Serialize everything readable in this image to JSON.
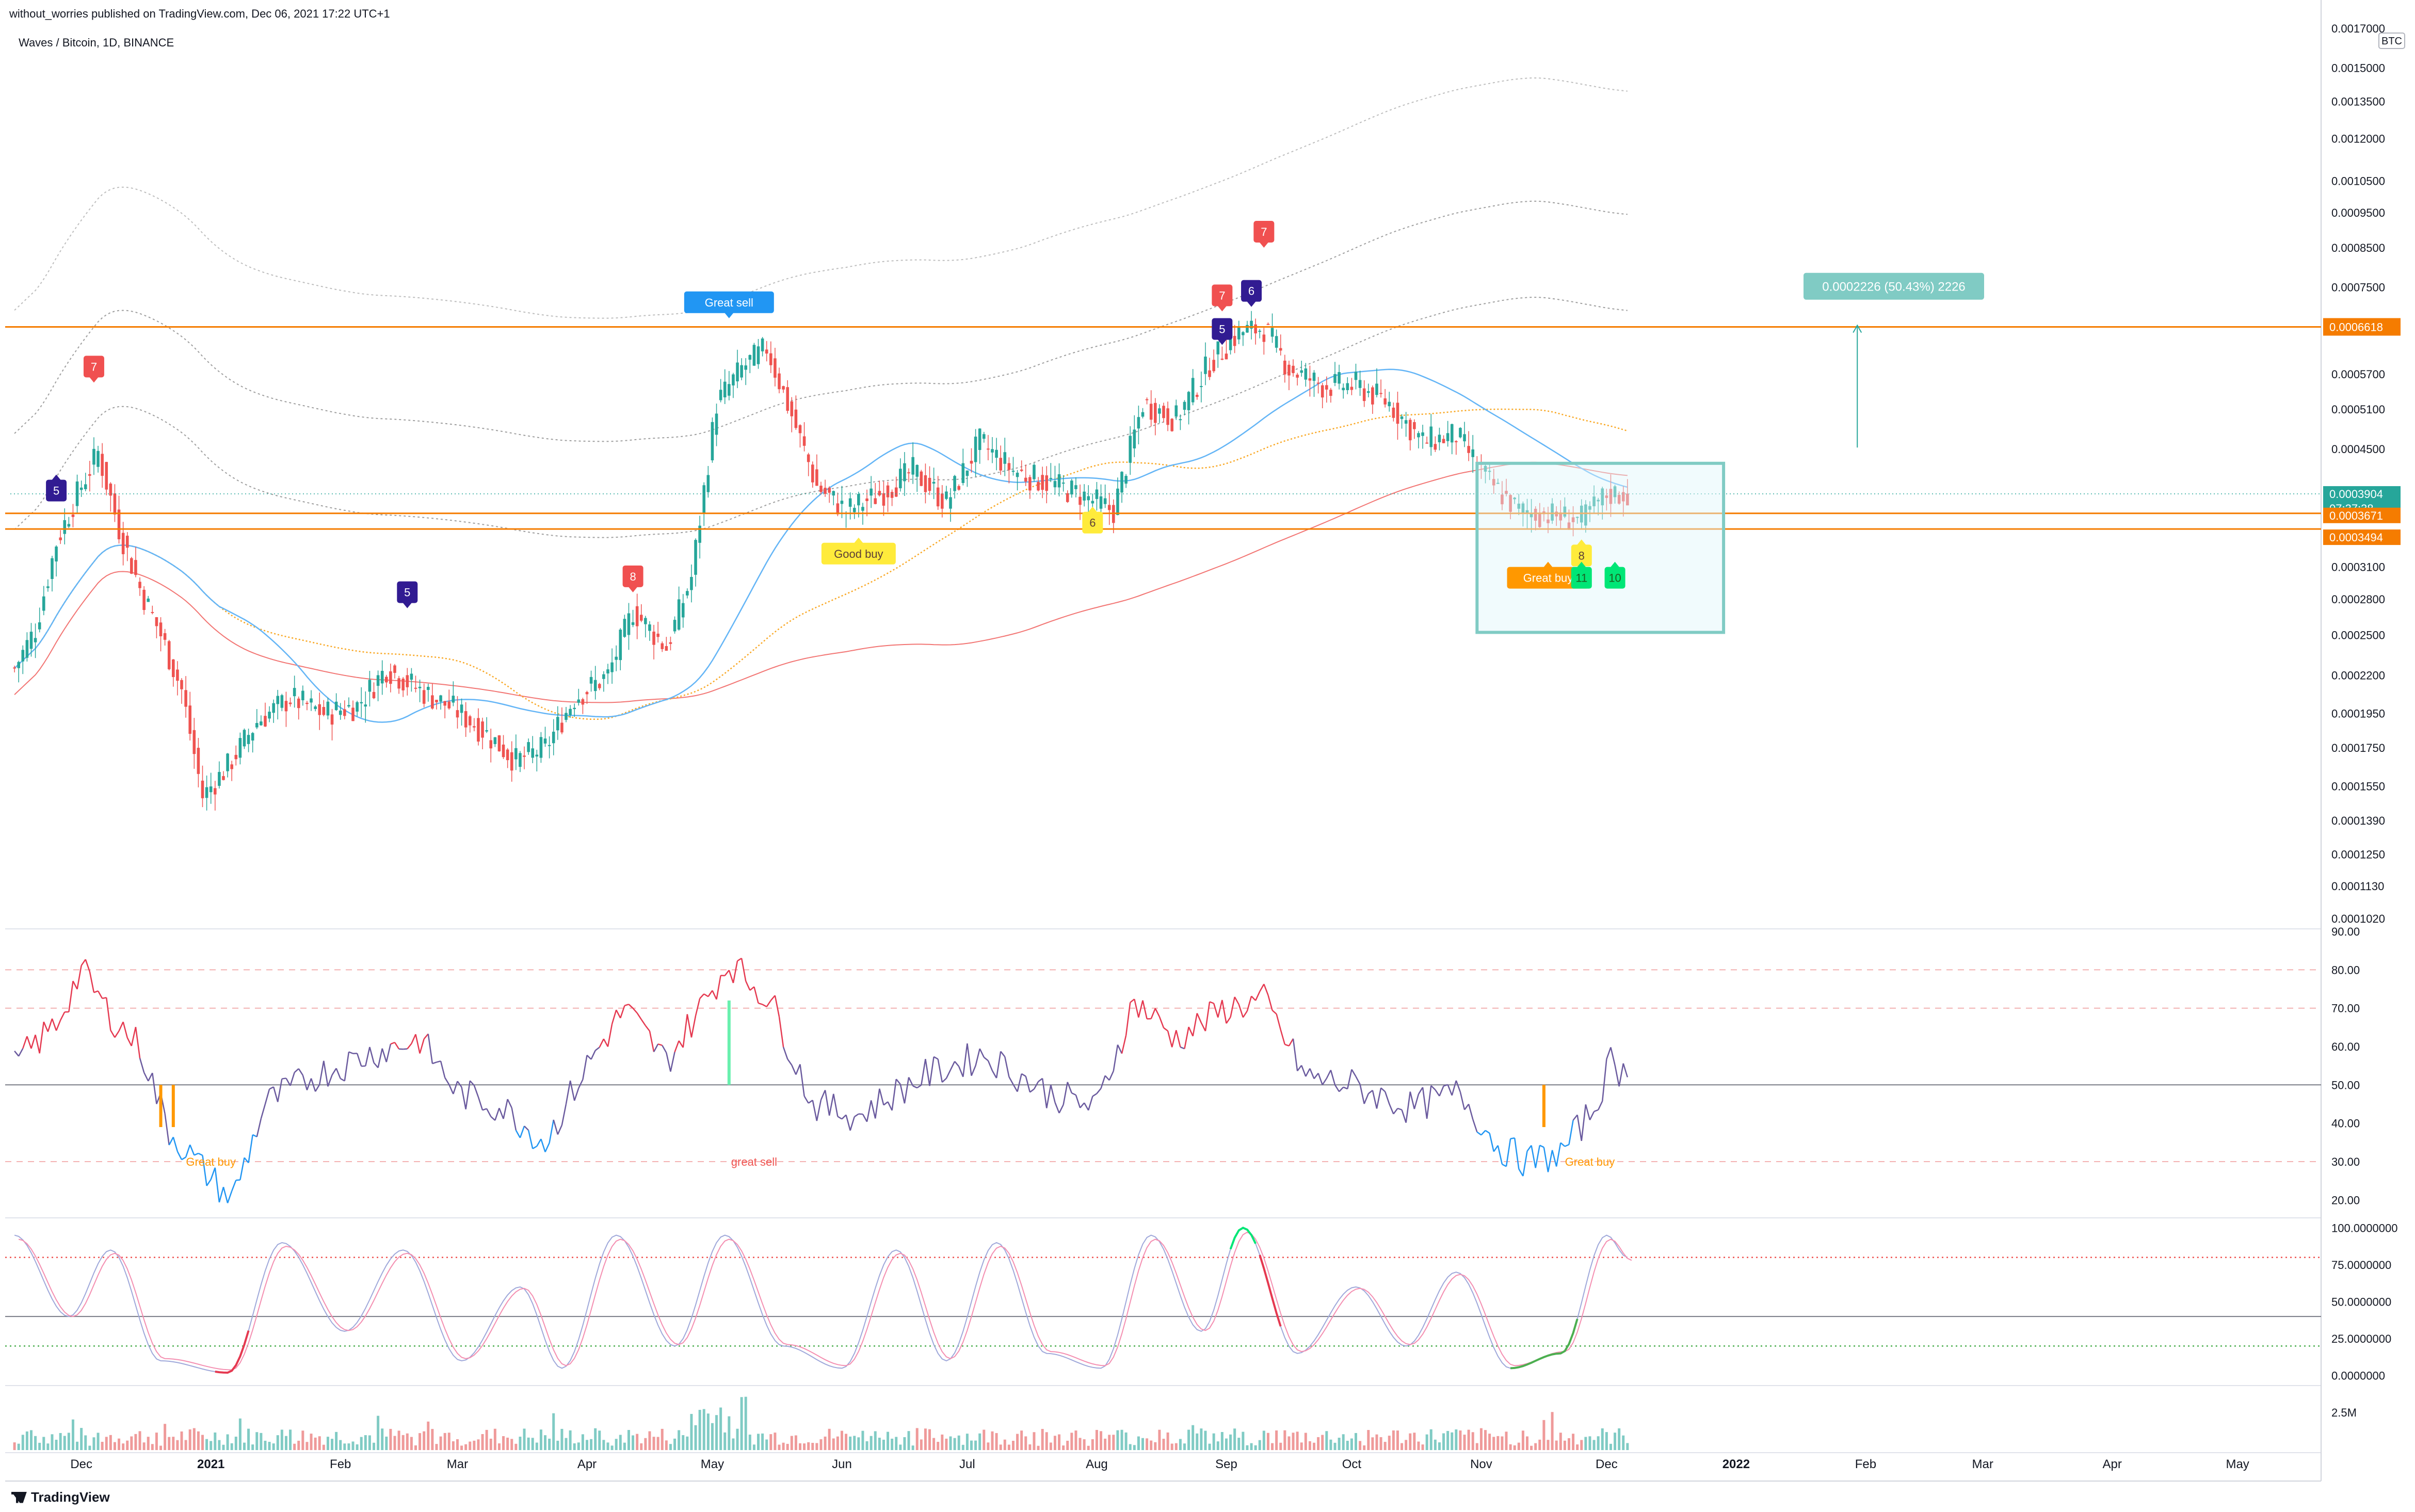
{
  "header": {
    "published": "without_worries published on TradingView.com, Dec 06, 2021 17:22 UTC+1",
    "symbol": "Waves / Bitcoin, 1D, BINANCE",
    "brand": "TradingView",
    "currency": "BTC"
  },
  "colors": {
    "up": "#26a69a",
    "down": "#ef5350",
    "orange_line": "#f57c00",
    "blue_ma": "#64b5f6",
    "red_ma": "#ef5350",
    "label_blue": "#2196f3",
    "label_navy": "#311b92",
    "label_red": "#f05050",
    "label_yellow": "#ffeb3b",
    "label_orange": "#ff9800",
    "label_green": "#00e676",
    "box": "#80cbc4"
  },
  "chart_data": [
    {
      "type": "line",
      "title": "Waves / Bitcoin, 1D, BINANCE",
      "y_scale": "log",
      "y_ticks": [
        "0.0017000",
        "0.0015000",
        "0.0013500",
        "0.0012000",
        "0.0010500",
        "0.0009500",
        "0.0008500",
        "0.0007500",
        "0.0005700",
        "0.0005100",
        "0.0004500",
        "0.0003100",
        "0.0002800",
        "0.0002500",
        "0.0002200",
        "0.0001950",
        "0.0001750",
        "0.0001550",
        "0.0001390",
        "0.0001250",
        "0.0001130",
        "0.0001020"
      ],
      "x_ticks": [
        "Dec",
        "2021",
        "Feb",
        "Mar",
        "Apr",
        "May",
        "Jun",
        "Jul",
        "Aug",
        "Sep",
        "Oct",
        "Nov",
        "Dec",
        "2022",
        "Feb",
        "Mar",
        "Apr",
        "May"
      ],
      "price_labels": [
        "0.0006618",
        "0.0003904",
        "07:37:38",
        "0.0003671",
        "0.0003494"
      ],
      "horizontal_levels": [
        0.0006618,
        0.0003671,
        0.0003494
      ],
      "measure_label": "0.0002226 (50.43%) 2226",
      "close_series": [
        {
          "d": "2020-11-15",
          "v": 0.000225
        },
        {
          "d": "2020-11-20",
          "v": 0.000255
        },
        {
          "d": "2020-11-25",
          "v": 0.000335
        },
        {
          "d": "2020-11-30",
          "v": 0.00039
        },
        {
          "d": "2020-12-05",
          "v": 0.000445
        },
        {
          "d": "2020-12-10",
          "v": 0.00035
        },
        {
          "d": "2020-12-15",
          "v": 0.00029
        },
        {
          "d": "2020-12-20",
          "v": 0.00025
        },
        {
          "d": "2020-12-25",
          "v": 0.00021
        },
        {
          "d": "2020-12-30",
          "v": 0.00015
        },
        {
          "d": "2021-01-05",
          "v": 0.000165
        },
        {
          "d": "2021-01-12",
          "v": 0.00019
        },
        {
          "d": "2021-01-20",
          "v": 0.000205
        },
        {
          "d": "2021-01-28",
          "v": 0.000195
        },
        {
          "d": "2021-02-05",
          "v": 0.0002
        },
        {
          "d": "2021-02-12",
          "v": 0.000225
        },
        {
          "d": "2021-02-20",
          "v": 0.00021
        },
        {
          "d": "2021-02-28",
          "v": 0.000198
        },
        {
          "d": "2021-03-07",
          "v": 0.000185
        },
        {
          "d": "2021-03-15",
          "v": 0.000168
        },
        {
          "d": "2021-03-22",
          "v": 0.000175
        },
        {
          "d": "2021-03-29",
          "v": 0.000205
        },
        {
          "d": "2021-04-06",
          "v": 0.00022
        },
        {
          "d": "2021-04-12",
          "v": 0.00027
        },
        {
          "d": "2021-04-20",
          "v": 0.00024
        },
        {
          "d": "2021-04-26",
          "v": 0.0003
        },
        {
          "d": "2021-05-02",
          "v": 0.00052
        },
        {
          "d": "2021-05-08",
          "v": 0.00058
        },
        {
          "d": "2021-05-14",
          "v": 0.00062
        },
        {
          "d": "2021-05-20",
          "v": 0.0005
        },
        {
          "d": "2021-05-26",
          "v": 0.0004
        },
        {
          "d": "2021-06-02",
          "v": 0.00037
        },
        {
          "d": "2021-06-10",
          "v": 0.00039
        },
        {
          "d": "2021-06-18",
          "v": 0.00042
        },
        {
          "d": "2021-06-26",
          "v": 0.00038
        },
        {
          "d": "2021-07-04",
          "v": 0.00046
        },
        {
          "d": "2021-07-12",
          "v": 0.00042
        },
        {
          "d": "2021-07-20",
          "v": 0.000405
        },
        {
          "d": "2021-07-28",
          "v": 0.00039
        },
        {
          "d": "2021-08-05",
          "v": 0.00037
        },
        {
          "d": "2021-08-12",
          "v": 0.00052
        },
        {
          "d": "2021-08-20",
          "v": 0.000495
        },
        {
          "d": "2021-08-28",
          "v": 0.00059
        },
        {
          "d": "2021-09-04",
          "v": 0.00065
        },
        {
          "d": "2021-09-10",
          "v": 0.00066
        },
        {
          "d": "2021-09-16",
          "v": 0.00058
        },
        {
          "d": "2021-09-24",
          "v": 0.00055
        },
        {
          "d": "2021-10-02",
          "v": 0.00055
        },
        {
          "d": "2021-10-10",
          "v": 0.00052
        },
        {
          "d": "2021-10-18",
          "v": 0.00046
        },
        {
          "d": "2021-10-26",
          "v": 0.00047
        },
        {
          "d": "2021-11-03",
          "v": 0.000405
        },
        {
          "d": "2021-11-10",
          "v": 0.00037
        },
        {
          "d": "2021-11-18",
          "v": 0.000365
        },
        {
          "d": "2021-11-25",
          "v": 0.00036
        },
        {
          "d": "2021-12-01",
          "v": 0.00039
        },
        {
          "d": "2021-12-06",
          "v": 0.0003904
        }
      ],
      "signals": [
        {
          "d": "2020-11-25",
          "text": "5",
          "kind": "navy",
          "pos": "below",
          "v": 0.000415
        },
        {
          "d": "2020-12-04",
          "text": "7",
          "kind": "red",
          "pos": "above",
          "v": 0.000555
        },
        {
          "d": "2021-02-17",
          "text": "5",
          "kind": "navy",
          "pos": "above",
          "v": 0.000272
        },
        {
          "d": "2021-04-12",
          "text": "8",
          "kind": "red",
          "pos": "above",
          "v": 0.000286
        },
        {
          "d": "2021-05-05",
          "text": "Great sell",
          "kind": "blue",
          "pos": "above",
          "v": 0.00068
        },
        {
          "d": "2021-06-05",
          "text": "Good buy",
          "kind": "yellow",
          "pos": "below",
          "v": 0.00034
        },
        {
          "d": "2021-07-31",
          "text": "6",
          "kind": "yellow",
          "pos": "below",
          "v": 0.000375
        },
        {
          "d": "2021-08-31",
          "text": "7",
          "kind": "red",
          "pos": "above",
          "v": 0.000695
        },
        {
          "d": "2021-08-31",
          "text": "5",
          "kind": "navy",
          "pos": "above",
          "v": 0.000625
        },
        {
          "d": "2021-09-07",
          "text": "6",
          "kind": "navy",
          "pos": "above",
          "v": 0.000705
        },
        {
          "d": "2021-09-10",
          "text": "7",
          "kind": "red",
          "pos": "above",
          "v": 0.00085
        },
        {
          "d": "2021-11-17",
          "text": "Great buy",
          "kind": "orange",
          "pos": "below",
          "v": 0.000315
        },
        {
          "d": "2021-11-25",
          "text": "8",
          "kind": "yellow",
          "pos": "below",
          "v": 0.000338
        },
        {
          "d": "2021-11-25",
          "text": "11",
          "kind": "green",
          "pos": "below",
          "v": 0.000315
        },
        {
          "d": "2021-12-03",
          "text": "10",
          "kind": "green",
          "pos": "below",
          "v": 0.000315
        }
      ]
    },
    {
      "type": "line",
      "y_ticks": [
        "90.00",
        "80.00",
        "70.00",
        "60.00",
        "50.00",
        "40.00",
        "30.00",
        "20.00"
      ],
      "ylim": [
        16,
        90
      ],
      "annotations": [
        "Great buy",
        "great sell",
        "Great buy"
      ],
      "series": [
        {
          "values": [
            {
              "d": "2020-11-15",
              "v": 55
            },
            {
              "d": "2020-11-25",
              "v": 66
            },
            {
              "d": "2020-12-01",
              "v": 80
            },
            {
              "d": "2020-12-08",
              "v": 68
            },
            {
              "d": "2020-12-15",
              "v": 60
            },
            {
              "d": "2020-12-22",
              "v": 38
            },
            {
              "d": "2020-12-30",
              "v": 28
            },
            {
              "d": "2021-01-06",
              "v": 20
            },
            {
              "d": "2021-01-14",
              "v": 45
            },
            {
              "d": "2021-01-25",
              "v": 52
            },
            {
              "d": "2021-02-08",
              "v": 58
            },
            {
              "d": "2021-02-20",
              "v": 62
            },
            {
              "d": "2021-03-01",
              "v": 48
            },
            {
              "d": "2021-03-12",
              "v": 44
            },
            {
              "d": "2021-03-22",
              "v": 35
            },
            {
              "d": "2021-04-01",
              "v": 55
            },
            {
              "d": "2021-04-10",
              "v": 70
            },
            {
              "d": "2021-04-20",
              "v": 56
            },
            {
              "d": "2021-05-01",
              "v": 75
            },
            {
              "d": "2021-05-05",
              "v": 82
            },
            {
              "d": "2021-05-15",
              "v": 72
            },
            {
              "d": "2021-05-25",
              "v": 45
            },
            {
              "d": "2021-06-05",
              "v": 42
            },
            {
              "d": "2021-06-20",
              "v": 52
            },
            {
              "d": "2021-07-05",
              "v": 58
            },
            {
              "d": "2021-07-20",
              "v": 48
            },
            {
              "d": "2021-08-01",
              "v": 44
            },
            {
              "d": "2021-08-10",
              "v": 72
            },
            {
              "d": "2021-08-20",
              "v": 62
            },
            {
              "d": "2021-09-01",
              "v": 70
            },
            {
              "d": "2021-09-10",
              "v": 72
            },
            {
              "d": "2021-09-20",
              "v": 52
            },
            {
              "d": "2021-10-01",
              "v": 50
            },
            {
              "d": "2021-10-15",
              "v": 44
            },
            {
              "d": "2021-10-27",
              "v": 48
            },
            {
              "d": "2021-11-05",
              "v": 34
            },
            {
              "d": "2021-11-12",
              "v": 30
            },
            {
              "d": "2021-11-20",
              "v": 32
            },
            {
              "d": "2021-11-28",
              "v": 44
            },
            {
              "d": "2021-12-02",
              "v": 56
            },
            {
              "d": "2021-12-06",
              "v": 52
            }
          ]
        }
      ],
      "reference_lines": [
        80,
        70,
        50,
        30
      ]
    },
    {
      "type": "line",
      "y_ticks": [
        "100.0000000",
        "75.0000000",
        "50.0000000",
        "25.0000000",
        "0.0000000"
      ],
      "ylim": [
        -5,
        105
      ],
      "reference_lines": [
        80,
        40,
        20
      ],
      "series": [
        {
          "values": [
            {
              "d": "2020-11-15",
              "v": 95
            },
            {
              "d": "2020-11-28",
              "v": 40
            },
            {
              "d": "2020-12-08",
              "v": 85
            },
            {
              "d": "2020-12-20",
              "v": 10
            },
            {
              "d": "2021-01-05",
              "v": 2
            },
            {
              "d": "2021-01-18",
              "v": 90
            },
            {
              "d": "2021-02-02",
              "v": 30
            },
            {
              "d": "2021-02-16",
              "v": 85
            },
            {
              "d": "2021-03-02",
              "v": 10
            },
            {
              "d": "2021-03-16",
              "v": 60
            },
            {
              "d": "2021-03-26",
              "v": 5
            },
            {
              "d": "2021-04-08",
              "v": 95
            },
            {
              "d": "2021-04-22",
              "v": 20
            },
            {
              "d": "2021-05-04",
              "v": 95
            },
            {
              "d": "2021-05-18",
              "v": 20
            },
            {
              "d": "2021-06-01",
              "v": 5
            },
            {
              "d": "2021-06-14",
              "v": 85
            },
            {
              "d": "2021-06-26",
              "v": 10
            },
            {
              "d": "2021-07-08",
              "v": 90
            },
            {
              "d": "2021-07-20",
              "v": 15
            },
            {
              "d": "2021-08-02",
              "v": 5
            },
            {
              "d": "2021-08-14",
              "v": 95
            },
            {
              "d": "2021-08-26",
              "v": 30
            },
            {
              "d": "2021-09-05",
              "v": 100
            },
            {
              "d": "2021-09-18",
              "v": 15
            },
            {
              "d": "2021-10-02",
              "v": 60
            },
            {
              "d": "2021-10-14",
              "v": 20
            },
            {
              "d": "2021-10-26",
              "v": 70
            },
            {
              "d": "2021-11-08",
              "v": 5
            },
            {
              "d": "2021-11-20",
              "v": 15
            },
            {
              "d": "2021-12-01",
              "v": 95
            },
            {
              "d": "2021-12-06",
              "v": 80
            }
          ]
        }
      ]
    },
    {
      "type": "bar",
      "y_ticks": [
        "2.5M"
      ],
      "note": "daily volume"
    }
  ]
}
